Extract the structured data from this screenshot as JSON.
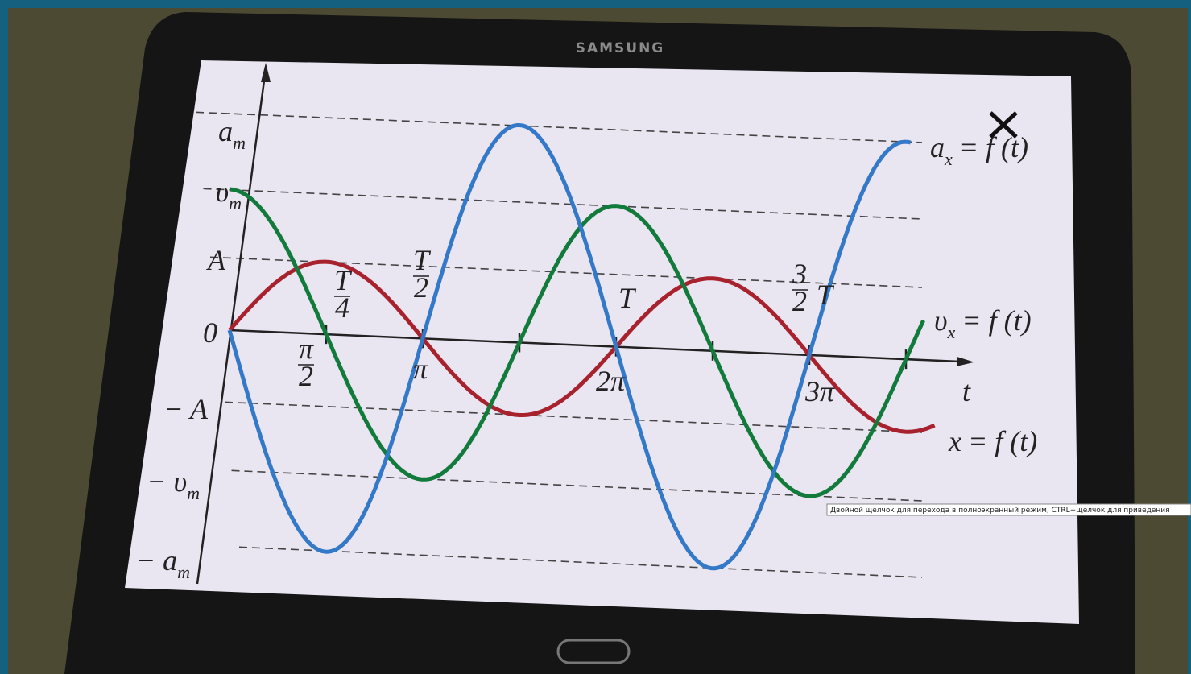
{
  "brand": "SAMSUNG",
  "y_labels": [
    {
      "text": "a",
      "sub": "m"
    },
    {
      "text": "υ",
      "sub": "m"
    },
    {
      "text": "A"
    },
    {
      "text": "0"
    },
    {
      "text": "− A"
    },
    {
      "text": "− υ",
      "sub": "m"
    },
    {
      "text": "− a",
      "sub": "m"
    }
  ],
  "period_labels": [
    {
      "num": "T",
      "den": "4"
    },
    {
      "num": "T",
      "den": "2"
    },
    {
      "text": "T"
    },
    {
      "num": "3",
      "den": "2",
      "after": "T"
    }
  ],
  "phase_labels": [
    {
      "num": "π",
      "den": "2"
    },
    {
      "text": "π"
    },
    {
      "text": "2π"
    },
    {
      "text": "3π"
    }
  ],
  "axis_label": "t",
  "curve_labels": [
    {
      "text": "a",
      "sub": "x",
      "rest": "= f (t)"
    },
    {
      "text": "υ",
      "sub": "x",
      "rest": "= f (t)"
    },
    {
      "text": "x",
      "rest": "= f (t)"
    }
  ],
  "tooltip": "Двойной щелчок для перехода в полноэкранный режим, CTRL+щелчок для приведения"
}
